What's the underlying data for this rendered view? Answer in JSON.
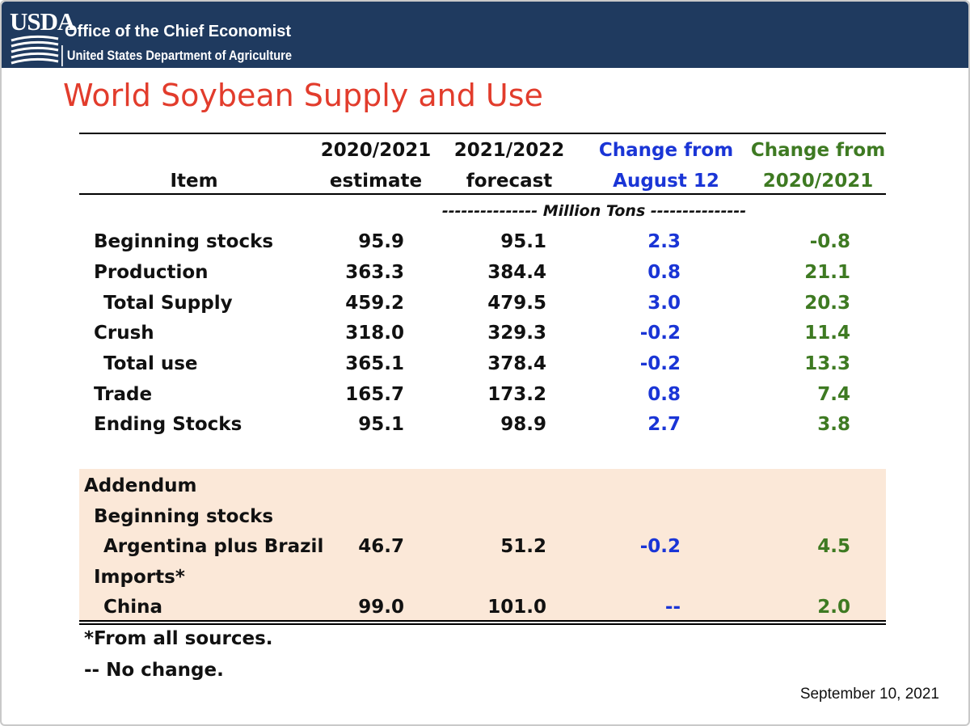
{
  "header": {
    "logo_text": "USDA",
    "office": "Office of the Chief Economist",
    "department": "United States Department of Agriculture"
  },
  "title": "World Soybean Supply and Use",
  "columns": [
    {
      "line1": "",
      "line2": "Item"
    },
    {
      "line1": "2020/2021",
      "line2": "estimate"
    },
    {
      "line1": "2021/2022",
      "line2": "forecast"
    },
    {
      "line1": "Change from",
      "line2": "August 12"
    },
    {
      "line1": "Change from",
      "line2": "2020/2021"
    }
  ],
  "unit_label": "--------------- Million Tons ---------------",
  "rows": [
    {
      "item": "Beginning stocks",
      "est": "95.9",
      "fcst": "95.1",
      "chg_aug": "2.3",
      "chg_yr": "-0.8"
    },
    {
      "item": "Production",
      "est": "363.3",
      "fcst": "384.4",
      "chg_aug": "0.8",
      "chg_yr": "21.1"
    },
    {
      "item": "Total Supply",
      "est": "459.2",
      "fcst": "479.5",
      "chg_aug": "3.0",
      "chg_yr": "20.3"
    },
    {
      "item": "Crush",
      "est": "318.0",
      "fcst": "329.3",
      "chg_aug": "-0.2",
      "chg_yr": "11.4"
    },
    {
      "item": "Total use",
      "est": "365.1",
      "fcst": "378.4",
      "chg_aug": "-0.2",
      "chg_yr": "13.3"
    },
    {
      "item": "Trade",
      "est": "165.7",
      "fcst": "173.2",
      "chg_aug": "0.8",
      "chg_yr": "7.4"
    },
    {
      "item": "Ending Stocks",
      "est": "95.1",
      "fcst": "98.9",
      "chg_aug": "2.7",
      "chg_yr": "3.8"
    }
  ],
  "addendum": {
    "label": "Addendum",
    "sub1": "Beginning stocks",
    "row1": {
      "item": "Argentina plus Brazil",
      "est": "46.7",
      "fcst": "51.2",
      "chg_aug": "-0.2",
      "chg_yr": "4.5"
    },
    "sub2": "Imports*",
    "row2": {
      "item": "China",
      "est": "99.0",
      "fcst": "101.0",
      "chg_aug": "--",
      "chg_yr": "2.0"
    }
  },
  "footnotes": [
    "*From all sources.",
    "-- No change."
  ],
  "date": "September 10, 2021",
  "colors": {
    "title": "#e23c2c",
    "banner": "#1f3a5f",
    "blue": "#1a35d6",
    "green": "#3e7a22",
    "addendum_bg": "#fbe8d8"
  }
}
